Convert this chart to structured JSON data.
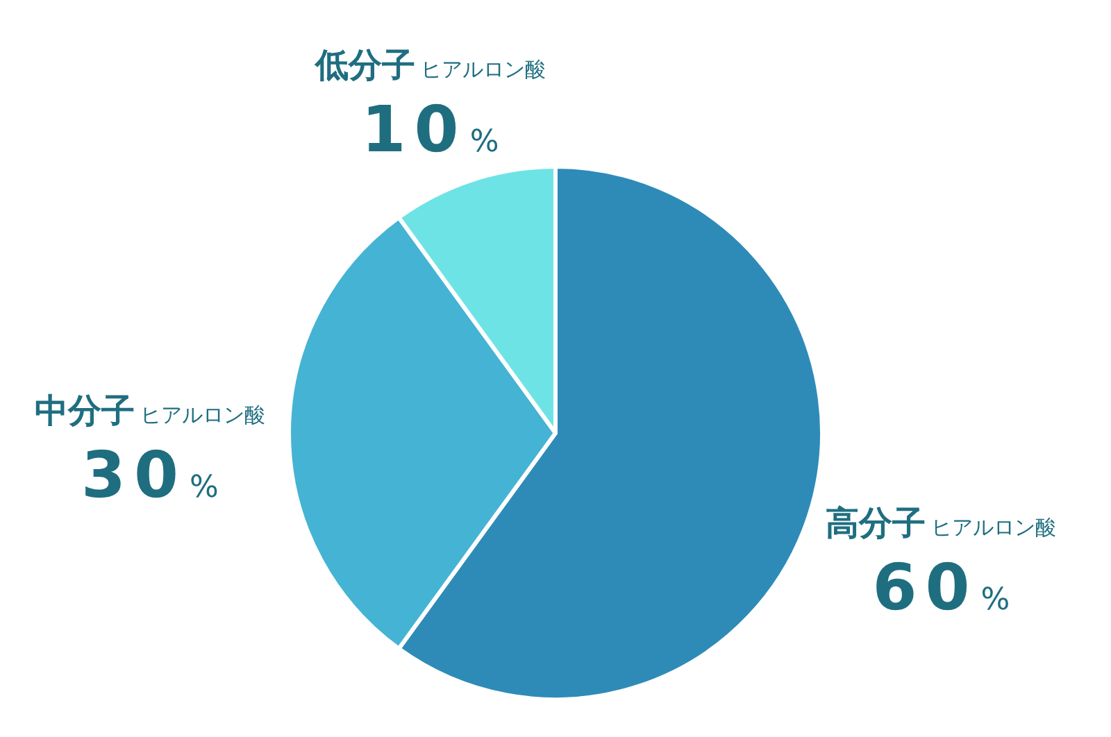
{
  "chart_data": {
    "type": "pie",
    "categories": [
      "高分子ヒアルロン酸",
      "中分子ヒアルロン酸",
      "低分子ヒアルロン酸"
    ],
    "values": [
      60,
      30,
      10
    ],
    "colors": [
      "#2e8bb8",
      "#45b3d4",
      "#6ee3e6"
    ],
    "value_labels": [
      "60%",
      "30%",
      "10%"
    ]
  }
}
